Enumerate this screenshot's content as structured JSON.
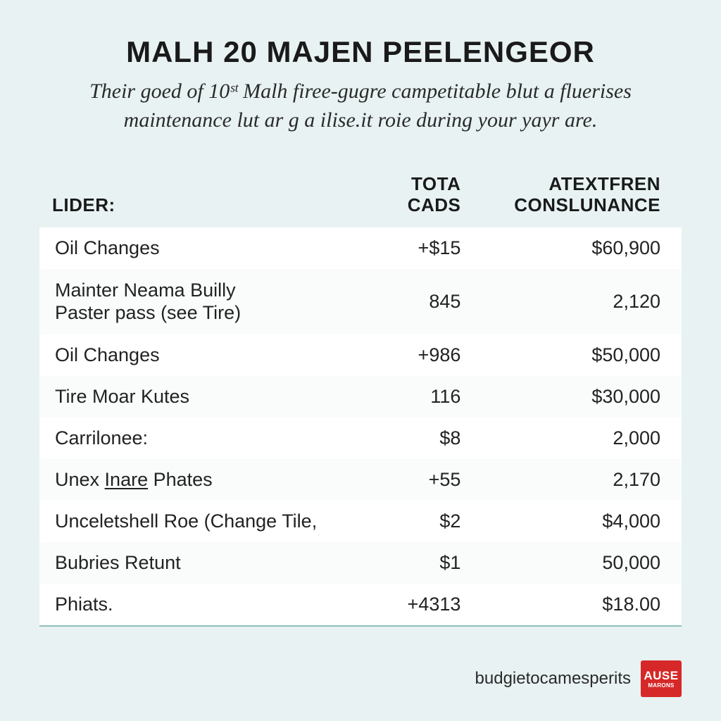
{
  "header": {
    "title": "MALH 20 MAJEN PEELENGEOR",
    "subtitle_line1": "Their goed of 10ˢᵗ Malh firee-gugre campetitable blut a fluerises",
    "subtitle_line2": "maintenance lut ar g a ilise.it roie during your yayr are."
  },
  "table": {
    "columns": {
      "lider": "LIDER:",
      "tota_l1": "TOTA",
      "tota_l2": "CADS",
      "atex_l1": "ATEXTFREN",
      "atex_l2": "CONSLUNANCE"
    },
    "rows": [
      {
        "label": "Oil Changes",
        "tota": "+$15",
        "atex": "$60,900"
      },
      {
        "label_l1": "Mainter Neama Builly",
        "label_l2": "Paster pass (see Tire)",
        "tota": "845",
        "atex": "2,120"
      },
      {
        "label": "Oil Changes",
        "tota": "+986",
        "atex": "$50,000"
      },
      {
        "label": "Tire Moar Kutes",
        "tota": "116",
        "atex": "$30,000"
      },
      {
        "label": "Carrilonee:",
        "tota": "$8",
        "atex": "2,000"
      },
      {
        "label_pre": "Unex ",
        "label_underline": "Inare",
        "label_post": " Phates",
        "tota": "+55",
        "atex": "2,170"
      },
      {
        "label": "Unceletshell Roe (Change Tile,",
        "tota": "$2",
        "atex": "$4,000"
      },
      {
        "label": "Bubries Retunt",
        "tota": "$1",
        "atex": "50,000"
      },
      {
        "label": "Phiats.",
        "tota": "+4313",
        "atex": "$18.00"
      }
    ],
    "styling": {
      "row_bg": "#ffffff",
      "row_bg_alt": "#fafcfc",
      "border_bottom_color": "#8fbfc0",
      "header_fontsize": 26,
      "cell_fontsize": 27,
      "col_widths_pct": [
        48,
        22,
        30
      ],
      "col_align": [
        "left",
        "right",
        "right"
      ]
    }
  },
  "footer": {
    "text": "budgietocamesperits",
    "logo_l1": "AUSE",
    "logo_l2": "MARONS",
    "logo_bg": "#d62828",
    "logo_fg": "#ffffff"
  },
  "page": {
    "background_color": "#e8f2f2",
    "title_fontsize": 42,
    "subtitle_fontsize": 30
  }
}
